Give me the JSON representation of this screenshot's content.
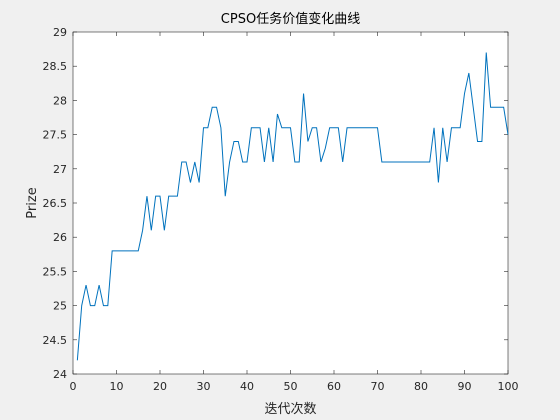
{
  "chart_data": {
    "type": "line",
    "title": "CPSO任务价值变化曲线",
    "xlabel": "迭代次数",
    "ylabel": "Prize",
    "xlim": [
      0,
      100
    ],
    "ylim": [
      24,
      29
    ],
    "xticks": [
      0,
      10,
      20,
      30,
      40,
      50,
      60,
      70,
      80,
      90,
      100
    ],
    "yticks": [
      24,
      24.5,
      25,
      25.5,
      26,
      26.5,
      27,
      27.5,
      28,
      28.5,
      29
    ],
    "ytick_labels": [
      "24",
      "24.5",
      "25",
      "25.5",
      "26",
      "26.5",
      "27",
      "27.5",
      "28",
      "28.5",
      "29"
    ],
    "grid": false,
    "legend": "none",
    "line_color": "#0072bd",
    "background_color": "#f0f0f0",
    "axes_color": "#ffffff",
    "series": [
      {
        "x": [
          1,
          2,
          3,
          4,
          5,
          6,
          7,
          8,
          9,
          10,
          11,
          12,
          13,
          14,
          15,
          16,
          17,
          18,
          19,
          20,
          21,
          22,
          23,
          24,
          25,
          26,
          27,
          28,
          29,
          30,
          31,
          32,
          33,
          34,
          35,
          36,
          37,
          38,
          39,
          40,
          41,
          42,
          43,
          44,
          45,
          46,
          47,
          48,
          49,
          50,
          51,
          52,
          53,
          54,
          55,
          56,
          57,
          58,
          59,
          60,
          61,
          62,
          63,
          64,
          65,
          66,
          67,
          68,
          69,
          70,
          71,
          72,
          73,
          74,
          75,
          76,
          77,
          78,
          79,
          80,
          81,
          82,
          83,
          84,
          85,
          86,
          87,
          88,
          89,
          90,
          91,
          92,
          93,
          94,
          95,
          96,
          97,
          98,
          99,
          100
        ],
        "y": [
          24.2,
          25.0,
          25.3,
          25.0,
          25.0,
          25.3,
          25.0,
          25.0,
          25.8,
          25.8,
          25.8,
          25.8,
          25.8,
          25.8,
          25.8,
          26.1,
          26.6,
          26.1,
          26.6,
          26.6,
          26.1,
          26.6,
          26.6,
          26.6,
          27.1,
          27.1,
          26.8,
          27.1,
          26.8,
          27.6,
          27.6,
          27.9,
          27.9,
          27.6,
          26.6,
          27.1,
          27.4,
          27.4,
          27.1,
          27.1,
          27.6,
          27.6,
          27.6,
          27.1,
          27.6,
          27.1,
          27.8,
          27.6,
          27.6,
          27.6,
          27.1,
          27.1,
          28.1,
          27.4,
          27.6,
          27.6,
          27.1,
          27.3,
          27.6,
          27.6,
          27.6,
          27.1,
          27.6,
          27.6,
          27.6,
          27.6,
          27.6,
          27.6,
          27.6,
          27.6,
          27.1,
          27.1,
          27.1,
          27.1,
          27.1,
          27.1,
          27.1,
          27.1,
          27.1,
          27.1,
          27.1,
          27.1,
          27.6,
          26.8,
          27.6,
          27.1,
          27.6,
          27.6,
          27.6,
          28.1,
          28.4,
          27.9,
          27.4,
          27.4,
          28.7,
          27.9,
          27.9,
          27.9,
          27.9,
          27.5
        ]
      }
    ]
  }
}
